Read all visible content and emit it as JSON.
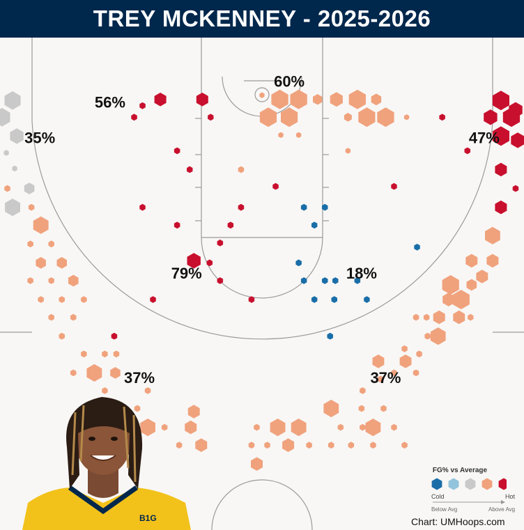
{
  "header": {
    "title": "TREY MCKENNEY - 2025-2026"
  },
  "chart_data": {
    "type": "hexbin_shot_chart",
    "x_range": [
      -25,
      25
    ],
    "y_range_feet_from_baseline": [
      0,
      47
    ],
    "zone_labels": [
      {
        "text": "60%",
        "x": 2.6,
        "y": 4.3
      },
      {
        "text": "56%",
        "x": -14.5,
        "y": 6.3
      },
      {
        "text": "35%",
        "x": -21.2,
        "y": 9.7
      },
      {
        "text": "47%",
        "x": 21.2,
        "y": 9.7
      },
      {
        "text": "79%",
        "x": -7.2,
        "y": 22.6
      },
      {
        "text": "18%",
        "x": 9.5,
        "y": 22.6
      },
      {
        "text": "37%",
        "x": -11.7,
        "y": 32.6
      },
      {
        "text": "37%",
        "x": 11.8,
        "y": 32.6
      }
    ],
    "shots": [
      {
        "x": 1.7,
        "y": 5.9,
        "size": 1.0,
        "tier": 4
      },
      {
        "x": 3.5,
        "y": 5.9,
        "size": 1.0,
        "tier": 4
      },
      {
        "x": 5.3,
        "y": 5.9,
        "size": 0.55,
        "tier": 4
      },
      {
        "x": 7.1,
        "y": 5.9,
        "size": 0.75,
        "tier": 4
      },
      {
        "x": 9.1,
        "y": 5.9,
        "size": 1.0,
        "tier": 4
      },
      {
        "x": 10.9,
        "y": 5.9,
        "size": 0.6,
        "tier": 4
      },
      {
        "x": 0.6,
        "y": 7.6,
        "size": 1.0,
        "tier": 4
      },
      {
        "x": 2.6,
        "y": 7.6,
        "size": 1.0,
        "tier": 4
      },
      {
        "x": 8.2,
        "y": 7.6,
        "size": 0.45,
        "tier": 4
      },
      {
        "x": 10.0,
        "y": 7.6,
        "size": 1.0,
        "tier": 4
      },
      {
        "x": 11.8,
        "y": 7.6,
        "size": 1.0,
        "tier": 4
      },
      {
        "x": 13.8,
        "y": 7.6,
        "size": 0.3,
        "tier": 4
      },
      {
        "x": 0.0,
        "y": 5.5,
        "size": 0.3,
        "tier": 4
      },
      {
        "x": 1.8,
        "y": 9.3,
        "size": 0.3,
        "tier": 4
      },
      {
        "x": 3.5,
        "y": 9.3,
        "size": 0.3,
        "tier": 4
      },
      {
        "x": 8.2,
        "y": 10.8,
        "size": 0.3,
        "tier": 4
      },
      {
        "x": 17.2,
        "y": 7.6,
        "size": 0.35,
        "tier": 5
      },
      {
        "x": -5.7,
        "y": 5.9,
        "size": 0.7,
        "tier": 5
      },
      {
        "x": -9.7,
        "y": 5.9,
        "size": 0.7,
        "tier": 5
      },
      {
        "x": -11.4,
        "y": 6.5,
        "size": 0.35,
        "tier": 5
      },
      {
        "x": -12.2,
        "y": 7.6,
        "size": 0.35,
        "tier": 5
      },
      {
        "x": -4.9,
        "y": 7.6,
        "size": 0.35,
        "tier": 5
      },
      {
        "x": -8.1,
        "y": 10.8,
        "size": 0.35,
        "tier": 5
      },
      {
        "x": -23.8,
        "y": 6.0,
        "size": 0.95,
        "tier": 3
      },
      {
        "x": -24.8,
        "y": 7.6,
        "size": 0.95,
        "tier": 3
      },
      {
        "x": -23.4,
        "y": 9.4,
        "size": 0.8,
        "tier": 3
      },
      {
        "x": -24.4,
        "y": 11.0,
        "size": 0.3,
        "tier": 3
      },
      {
        "x": -23.6,
        "y": 12.5,
        "size": 0.3,
        "tier": 3
      },
      {
        "x": -22.2,
        "y": 14.4,
        "size": 0.6,
        "tier": 3
      },
      {
        "x": -23.8,
        "y": 16.2,
        "size": 0.9,
        "tier": 3
      },
      {
        "x": 22.8,
        "y": 6.0,
        "size": 1.0,
        "tier": 5
      },
      {
        "x": 24.2,
        "y": 6.9,
        "size": 0.8,
        "tier": 5
      },
      {
        "x": 21.8,
        "y": 7.6,
        "size": 0.8,
        "tier": 5
      },
      {
        "x": 23.8,
        "y": 7.6,
        "size": 1.0,
        "tier": 5
      },
      {
        "x": 22.8,
        "y": 9.4,
        "size": 1.0,
        "tier": 5
      },
      {
        "x": 24.4,
        "y": 9.8,
        "size": 0.8,
        "tier": 5
      },
      {
        "x": 19.6,
        "y": 10.8,
        "size": 0.35,
        "tier": 5
      },
      {
        "x": 22.8,
        "y": 12.6,
        "size": 0.7,
        "tier": 5
      },
      {
        "x": 24.2,
        "y": 14.4,
        "size": 0.35,
        "tier": 5
      },
      {
        "x": 22.8,
        "y": 16.2,
        "size": 0.7,
        "tier": 5
      },
      {
        "x": -6.9,
        "y": 12.6,
        "size": 0.35,
        "tier": 5
      },
      {
        "x": -2.0,
        "y": 12.6,
        "size": 0.35,
        "tier": 4
      },
      {
        "x": 1.3,
        "y": 14.2,
        "size": 0.35,
        "tier": 5
      },
      {
        "x": -2.0,
        "y": 16.2,
        "size": 0.35,
        "tier": 5
      },
      {
        "x": -11.4,
        "y": 16.2,
        "size": 0.35,
        "tier": 5
      },
      {
        "x": 12.6,
        "y": 14.2,
        "size": 0.35,
        "tier": 5
      },
      {
        "x": -3.0,
        "y": 17.9,
        "size": 0.35,
        "tier": 5
      },
      {
        "x": -8.1,
        "y": 17.9,
        "size": 0.35,
        "tier": 5
      },
      {
        "x": -4.0,
        "y": 19.6,
        "size": 0.35,
        "tier": 5
      },
      {
        "x": -5.0,
        "y": 21.5,
        "size": 0.35,
        "tier": 5
      },
      {
        "x": -6.5,
        "y": 21.3,
        "size": 0.8,
        "tier": 5
      },
      {
        "x": -4.0,
        "y": 23.2,
        "size": 0.35,
        "tier": 5
      },
      {
        "x": -10.4,
        "y": 25.0,
        "size": 0.35,
        "tier": 5
      },
      {
        "x": -1.0,
        "y": 25.0,
        "size": 0.35,
        "tier": 5
      },
      {
        "x": -14.1,
        "y": 28.5,
        "size": 0.35,
        "tier": 5
      },
      {
        "x": 4.0,
        "y": 16.2,
        "size": 0.35,
        "tier": 1
      },
      {
        "x": 6.0,
        "y": 16.2,
        "size": 0.35,
        "tier": 1
      },
      {
        "x": 5.0,
        "y": 17.9,
        "size": 0.35,
        "tier": 1
      },
      {
        "x": 3.5,
        "y": 21.5,
        "size": 0.35,
        "tier": 1
      },
      {
        "x": 4.0,
        "y": 23.2,
        "size": 0.35,
        "tier": 1
      },
      {
        "x": 6.0,
        "y": 23.2,
        "size": 0.35,
        "tier": 1
      },
      {
        "x": 7.0,
        "y": 23.2,
        "size": 0.35,
        "tier": 1
      },
      {
        "x": 9.1,
        "y": 23.2,
        "size": 0.35,
        "tier": 1
      },
      {
        "x": 5.0,
        "y": 25.0,
        "size": 0.35,
        "tier": 1
      },
      {
        "x": 6.9,
        "y": 25.0,
        "size": 0.35,
        "tier": 1
      },
      {
        "x": 14.8,
        "y": 20.0,
        "size": 0.35,
        "tier": 1
      },
      {
        "x": 6.5,
        "y": 28.5,
        "size": 0.35,
        "tier": 1
      },
      {
        "x": 10.0,
        "y": 25.0,
        "size": 0.35,
        "tier": 1
      },
      {
        "x": -24.3,
        "y": 14.4,
        "size": 0.35,
        "tier": 4
      },
      {
        "x": -22.0,
        "y": 16.2,
        "size": 0.35,
        "tier": 4
      },
      {
        "x": -21.1,
        "y": 17.9,
        "size": 0.9,
        "tier": 4
      },
      {
        "x": -22.1,
        "y": 19.7,
        "size": 0.35,
        "tier": 4
      },
      {
        "x": -20.1,
        "y": 19.7,
        "size": 0.35,
        "tier": 4
      },
      {
        "x": -21.1,
        "y": 21.5,
        "size": 0.6,
        "tier": 4
      },
      {
        "x": -19.1,
        "y": 21.5,
        "size": 0.6,
        "tier": 4
      },
      {
        "x": -20.1,
        "y": 23.2,
        "size": 0.35,
        "tier": 4
      },
      {
        "x": -18.0,
        "y": 23.2,
        "size": 0.6,
        "tier": 4
      },
      {
        "x": -22.1,
        "y": 23.2,
        "size": 0.35,
        "tier": 4
      },
      {
        "x": -21.1,
        "y": 25.0,
        "size": 0.35,
        "tier": 4
      },
      {
        "x": -19.1,
        "y": 25.0,
        "size": 0.35,
        "tier": 4
      },
      {
        "x": -17.0,
        "y": 25.0,
        "size": 0.35,
        "tier": 4
      },
      {
        "x": -18.0,
        "y": 26.7,
        "size": 0.35,
        "tier": 4
      },
      {
        "x": -20.1,
        "y": 26.7,
        "size": 0.35,
        "tier": 4
      },
      {
        "x": -19.1,
        "y": 28.5,
        "size": 0.35,
        "tier": 4
      },
      {
        "x": -17.0,
        "y": 30.2,
        "size": 0.35,
        "tier": 4
      },
      {
        "x": -15.0,
        "y": 30.2,
        "size": 0.35,
        "tier": 4
      },
      {
        "x": -13.9,
        "y": 30.2,
        "size": 0.35,
        "tier": 4
      },
      {
        "x": -16.0,
        "y": 32.0,
        "size": 0.9,
        "tier": 4
      },
      {
        "x": -14.0,
        "y": 32.0,
        "size": 0.6,
        "tier": 4
      },
      {
        "x": -18.0,
        "y": 32.0,
        "size": 0.35,
        "tier": 4
      },
      {
        "x": -15.0,
        "y": 33.7,
        "size": 0.35,
        "tier": 4
      },
      {
        "x": -10.9,
        "y": 33.7,
        "size": 0.35,
        "tier": 4
      },
      {
        "x": -11.9,
        "y": 35.4,
        "size": 0.35,
        "tier": 4
      },
      {
        "x": -10.9,
        "y": 37.2,
        "size": 0.9,
        "tier": 4
      },
      {
        "x": -13.0,
        "y": 37.2,
        "size": 0.35,
        "tier": 4
      },
      {
        "x": -9.3,
        "y": 37.2,
        "size": 0.35,
        "tier": 4
      },
      {
        "x": -6.5,
        "y": 35.7,
        "size": 0.7,
        "tier": 4
      },
      {
        "x": -6.8,
        "y": 37.2,
        "size": 0.7,
        "tier": 4
      },
      {
        "x": -5.8,
        "y": 38.9,
        "size": 0.7,
        "tier": 4
      },
      {
        "x": -7.9,
        "y": 38.9,
        "size": 0.35,
        "tier": 4
      },
      {
        "x": -0.5,
        "y": 37.2,
        "size": 0.35,
        "tier": 4
      },
      {
        "x": 0.5,
        "y": 38.9,
        "size": 0.35,
        "tier": 4
      },
      {
        "x": -1.0,
        "y": 38.9,
        "size": 0.35,
        "tier": 4
      },
      {
        "x": -0.5,
        "y": 40.7,
        "size": 0.7,
        "tier": 4
      },
      {
        "x": 1.5,
        "y": 37.2,
        "size": 0.9,
        "tier": 4
      },
      {
        "x": 3.5,
        "y": 37.2,
        "size": 0.9,
        "tier": 4
      },
      {
        "x": 2.5,
        "y": 38.9,
        "size": 0.7,
        "tier": 4
      },
      {
        "x": 4.5,
        "y": 38.9,
        "size": 0.35,
        "tier": 4
      },
      {
        "x": 6.6,
        "y": 38.9,
        "size": 0.35,
        "tier": 4
      },
      {
        "x": 8.5,
        "y": 38.9,
        "size": 0.35,
        "tier": 4
      },
      {
        "x": 7.5,
        "y": 37.2,
        "size": 0.35,
        "tier": 4
      },
      {
        "x": 9.6,
        "y": 37.2,
        "size": 0.35,
        "tier": 4
      },
      {
        "x": 6.6,
        "y": 35.4,
        "size": 0.9,
        "tier": 4
      },
      {
        "x": 9.5,
        "y": 35.4,
        "size": 0.35,
        "tier": 4
      },
      {
        "x": 9.6,
        "y": 33.7,
        "size": 0.35,
        "tier": 4
      },
      {
        "x": 11.6,
        "y": 35.4,
        "size": 0.35,
        "tier": 4
      },
      {
        "x": 10.6,
        "y": 37.2,
        "size": 0.9,
        "tier": 4
      },
      {
        "x": 12.6,
        "y": 37.2,
        "size": 0.35,
        "tier": 4
      },
      {
        "x": 10.6,
        "y": 38.9,
        "size": 0.35,
        "tier": 4
      },
      {
        "x": 13.6,
        "y": 38.9,
        "size": 0.35,
        "tier": 4
      },
      {
        "x": 11.3,
        "y": 32.6,
        "size": 0.35,
        "tier": 4
      },
      {
        "x": 11.1,
        "y": 30.9,
        "size": 0.7,
        "tier": 4
      },
      {
        "x": 13.7,
        "y": 30.9,
        "size": 0.7,
        "tier": 4
      },
      {
        "x": 12.6,
        "y": 32.0,
        "size": 0.35,
        "tier": 4
      },
      {
        "x": 14.7,
        "y": 32.0,
        "size": 0.35,
        "tier": 4
      },
      {
        "x": 15.0,
        "y": 30.2,
        "size": 0.35,
        "tier": 4
      },
      {
        "x": 13.6,
        "y": 29.7,
        "size": 0.35,
        "tier": 4
      },
      {
        "x": 15.8,
        "y": 28.5,
        "size": 0.35,
        "tier": 4
      },
      {
        "x": 16.8,
        "y": 28.5,
        "size": 0.9,
        "tier": 4
      },
      {
        "x": 14.7,
        "y": 26.7,
        "size": 0.35,
        "tier": 4
      },
      {
        "x": 15.7,
        "y": 26.7,
        "size": 0.35,
        "tier": 4
      },
      {
        "x": 16.9,
        "y": 26.7,
        "size": 0.7,
        "tier": 4
      },
      {
        "x": 18.8,
        "y": 26.7,
        "size": 0.7,
        "tier": 4
      },
      {
        "x": 19.9,
        "y": 26.7,
        "size": 0.35,
        "tier": 4
      },
      {
        "x": 17.8,
        "y": 25.0,
        "size": 0.7,
        "tier": 4
      },
      {
        "x": 19.0,
        "y": 25.0,
        "size": 1.0,
        "tier": 4
      },
      {
        "x": 18.0,
        "y": 23.6,
        "size": 1.0,
        "tier": 4
      },
      {
        "x": 20.0,
        "y": 23.6,
        "size": 0.6,
        "tier": 4
      },
      {
        "x": 21.0,
        "y": 22.8,
        "size": 0.7,
        "tier": 4
      },
      {
        "x": 20.0,
        "y": 21.3,
        "size": 0.7,
        "tier": 4
      },
      {
        "x": 22.0,
        "y": 21.3,
        "size": 0.7,
        "tier": 4
      },
      {
        "x": 22.0,
        "y": 18.9,
        "size": 0.9,
        "tier": 4
      }
    ],
    "legend": {
      "title": "FG% vs Average",
      "low_label": "Cold",
      "high_label": "Hot",
      "below_label": "Below Avg",
      "above_label": "Above Avg",
      "tiers": [
        "#1a6ea8",
        "#93c4dd",
        "#c9c9c9",
        "#f0a27d",
        "#c8102e"
      ]
    }
  },
  "footer": {
    "credit": "Chart: UMHoops.com"
  }
}
